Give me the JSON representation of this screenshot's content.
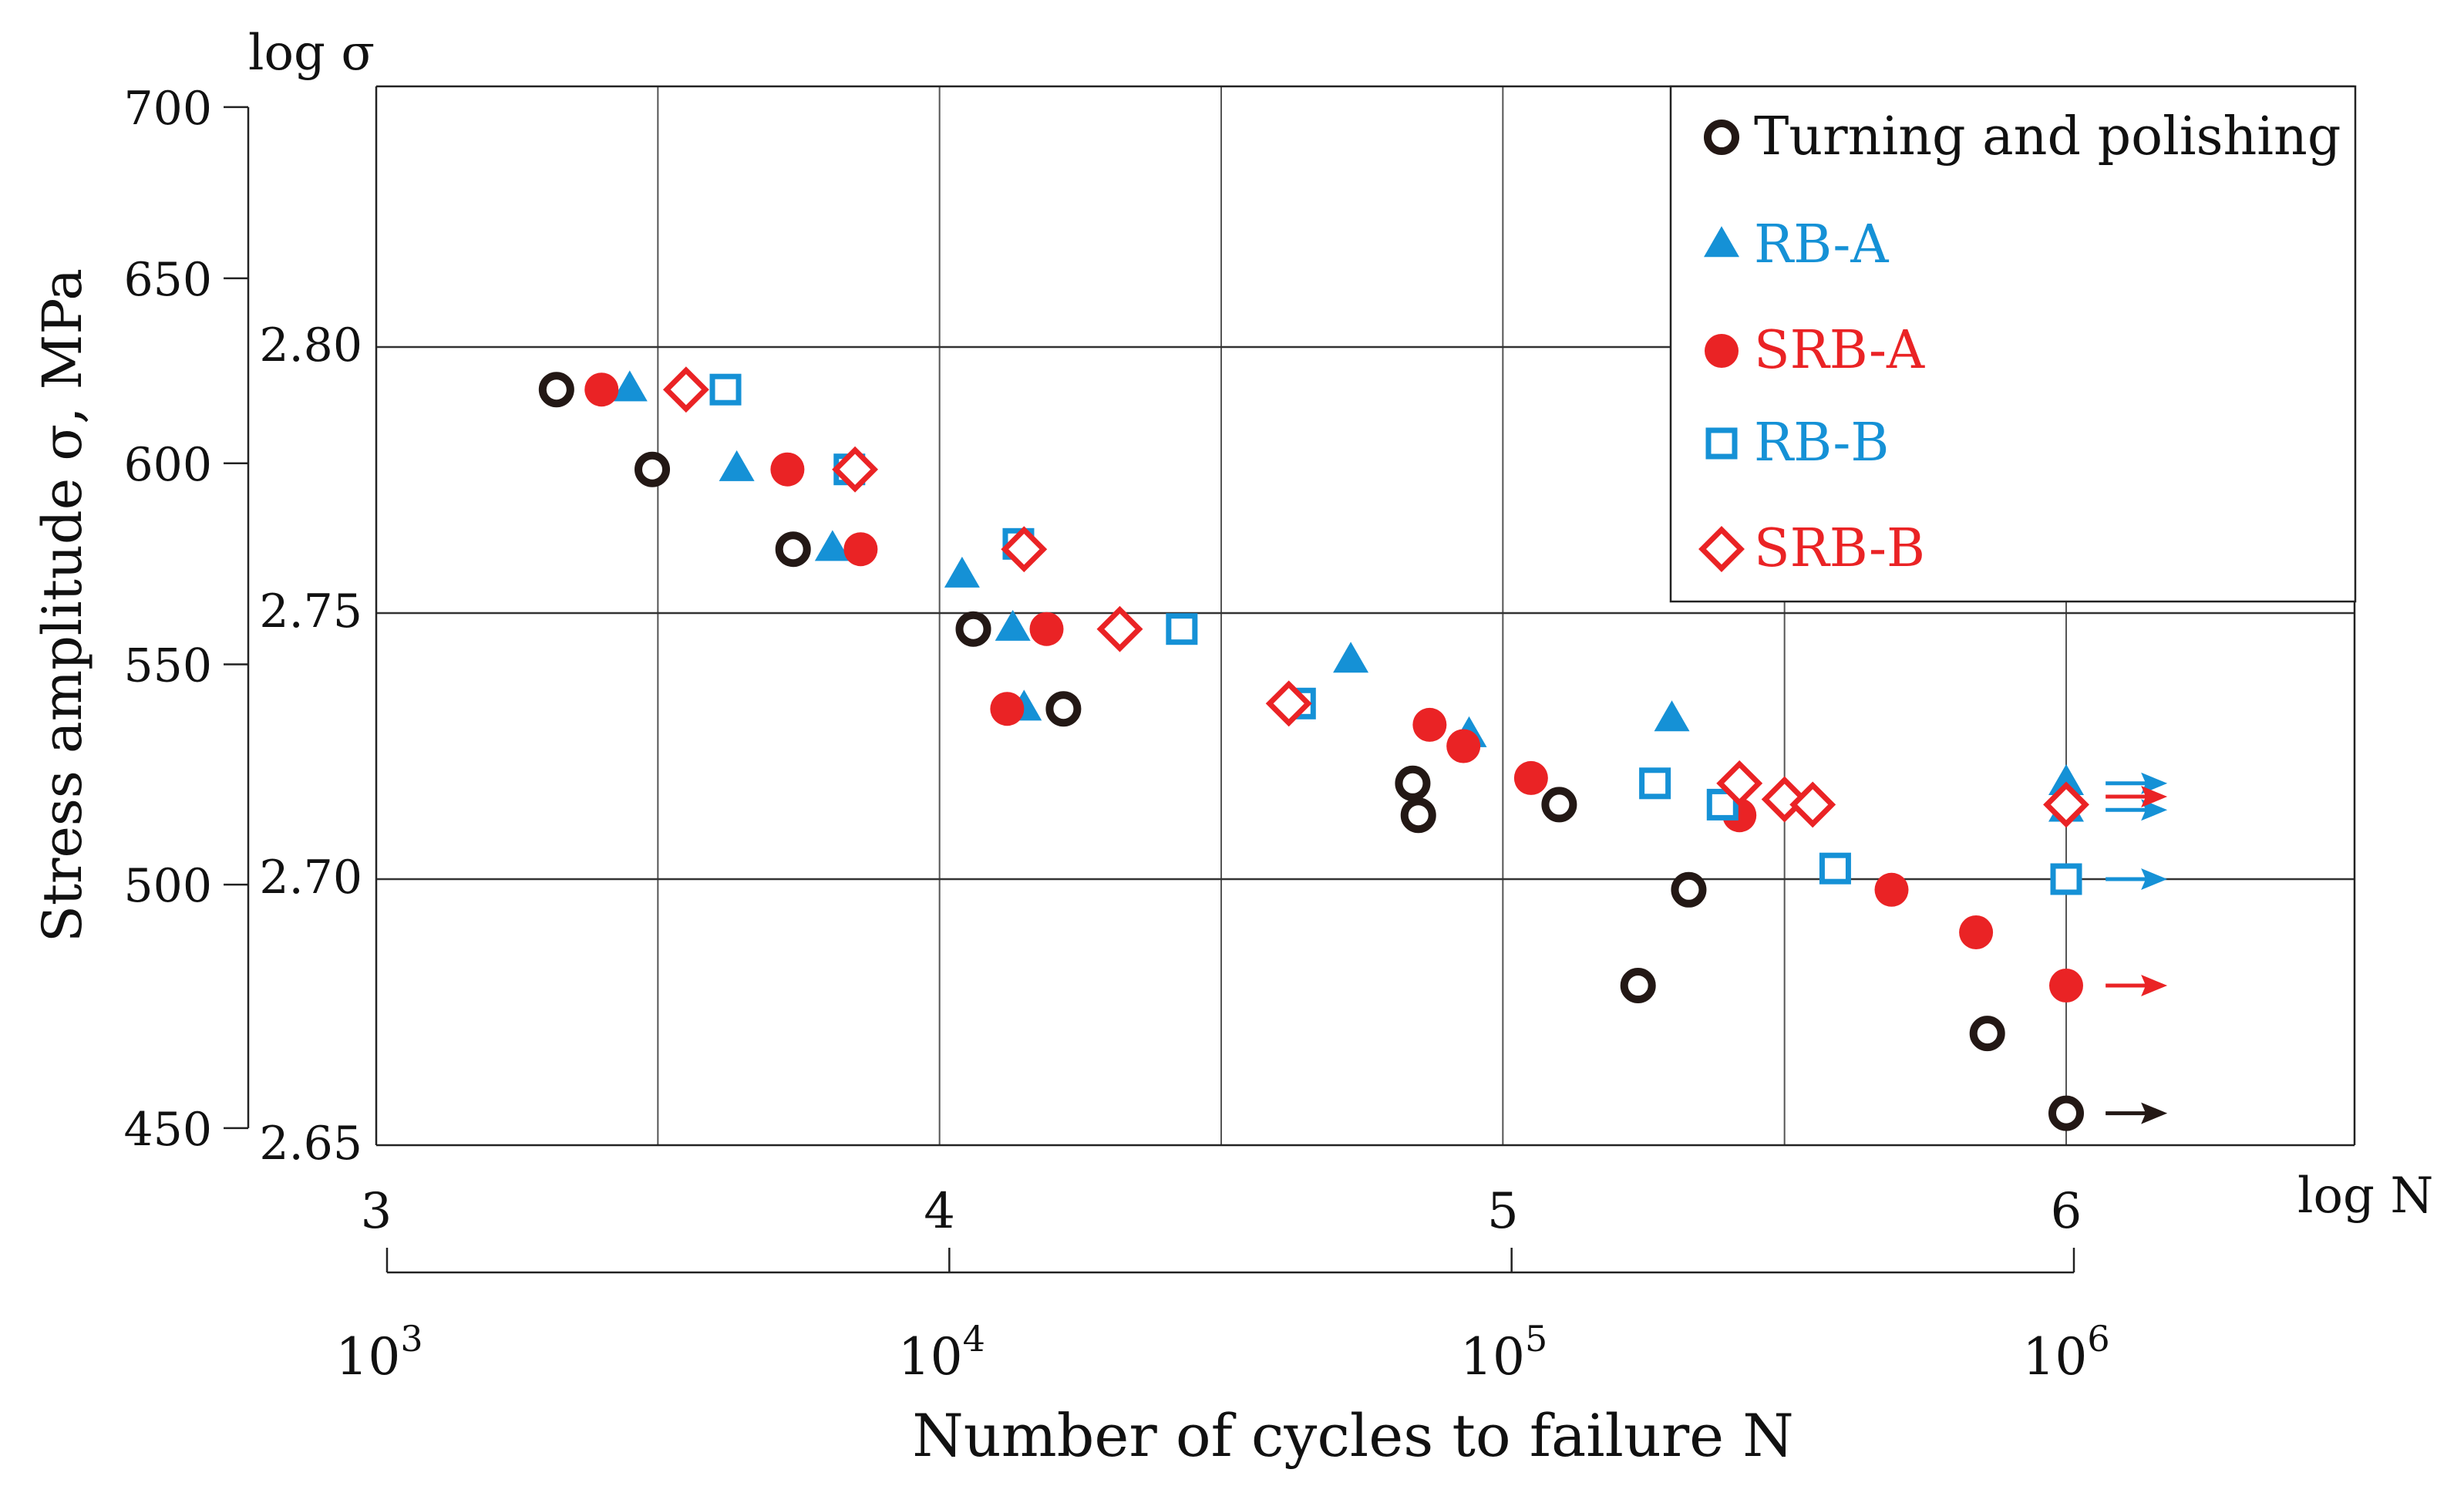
{
  "chart_data": {
    "type": "scatter",
    "title": "",
    "xlabel": "Number of cycles to failure N",
    "x_axis_label": "log N",
    "ylabel": "Stress amplitude σ, MPa",
    "y_axis_label": "log σ",
    "xlim": [
      3,
      6.5
    ],
    "ylim_log": [
      2.65,
      2.85
    ],
    "log_x_ticks": [
      "3",
      "4",
      "5",
      "6"
    ],
    "log_x_tick_values": [
      3,
      4,
      5,
      6
    ],
    "power_x_ticks": [
      {
        "base": "10",
        "exp": "3",
        "value": 3
      },
      {
        "base": "10",
        "exp": "4",
        "value": 4
      },
      {
        "base": "10",
        "exp": "5",
        "value": 5
      },
      {
        "base": "10",
        "exp": "6",
        "value": 6
      }
    ],
    "log_y_ticks": [
      "2.80",
      "2.75",
      "2.70",
      "2.65"
    ],
    "log_y_tick_values": [
      2.8,
      2.75,
      2.7,
      2.65
    ],
    "stress_y_ticks": [
      "700",
      "650",
      "600",
      "550",
      "500",
      "450"
    ],
    "stress_y_tick_values": [
      700,
      650,
      600,
      550,
      500,
      450
    ],
    "grid": true,
    "legend_position": "top-right",
    "colors": {
      "black": "#231815",
      "blue": "#1591d6",
      "red": "#ea2325"
    },
    "series": [
      {
        "name": "Turning and polishing",
        "marker": "ring",
        "color": "#231815",
        "points": [
          [
            3.32,
            2.792
          ],
          [
            3.49,
            2.777
          ],
          [
            3.74,
            2.762
          ],
          [
            4.06,
            2.747
          ],
          [
            4.22,
            2.732
          ],
          [
            4.84,
            2.718
          ],
          [
            4.85,
            2.712
          ],
          [
            5.1,
            2.714
          ],
          [
            5.33,
            2.698
          ],
          [
            5.24,
            2.68
          ],
          [
            5.86,
            2.671
          ],
          [
            6.0,
            2.656
          ]
        ]
      },
      {
        "name": "RB-A",
        "marker": "triangle",
        "color": "#1591d6",
        "points": [
          [
            3.45,
            2.792
          ],
          [
            3.64,
            2.777
          ],
          [
            3.81,
            2.762
          ],
          [
            4.04,
            2.757
          ],
          [
            4.13,
            2.747
          ],
          [
            4.15,
            2.732
          ],
          [
            4.73,
            2.741
          ],
          [
            4.94,
            2.727
          ],
          [
            5.3,
            2.73
          ],
          [
            6.0,
            2.718
          ],
          [
            6.0,
            2.713
          ]
        ]
      },
      {
        "name": "SRB-A",
        "marker": "dot",
        "color": "#ea2325",
        "points": [
          [
            3.4,
            2.792
          ],
          [
            3.73,
            2.777
          ],
          [
            3.86,
            2.762
          ],
          [
            4.12,
            2.732
          ],
          [
            4.19,
            2.747
          ],
          [
            4.87,
            2.729
          ],
          [
            4.93,
            2.725
          ],
          [
            5.05,
            2.719
          ],
          [
            5.42,
            2.712
          ],
          [
            5.69,
            2.698
          ],
          [
            5.84,
            2.69
          ],
          [
            6.0,
            2.68
          ]
        ]
      },
      {
        "name": "RB-B",
        "marker": "square",
        "color": "#1591d6",
        "points": [
          [
            3.62,
            2.792
          ],
          [
            3.84,
            2.777
          ],
          [
            4.14,
            2.763
          ],
          [
            4.43,
            2.747
          ],
          [
            4.64,
            2.733
          ],
          [
            5.27,
            2.718
          ],
          [
            5.39,
            2.714
          ],
          [
            5.59,
            2.702
          ],
          [
            6.0,
            2.7
          ]
        ]
      },
      {
        "name": "SRB-B",
        "marker": "diamond",
        "color": "#ea2325",
        "points": [
          [
            3.55,
            2.792
          ],
          [
            3.85,
            2.777
          ],
          [
            4.15,
            2.762
          ],
          [
            4.32,
            2.747
          ],
          [
            4.62,
            2.733
          ],
          [
            5.42,
            2.718
          ],
          [
            5.5,
            2.715
          ],
          [
            5.55,
            2.714
          ],
          [
            6.0,
            2.714
          ]
        ]
      }
    ],
    "runouts": [
      {
        "color": "#1591d6",
        "from": [
          6.07,
          2.718
        ]
      },
      {
        "color": "#1591d6",
        "from": [
          6.07,
          2.713
        ]
      },
      {
        "color": "#ea2325",
        "from": [
          6.07,
          2.7155
        ]
      },
      {
        "color": "#1591d6",
        "from": [
          6.07,
          2.7
        ]
      },
      {
        "color": "#ea2325",
        "from": [
          6.07,
          2.68
        ]
      },
      {
        "color": "#231815",
        "from": [
          6.07,
          2.656
        ]
      }
    ]
  }
}
